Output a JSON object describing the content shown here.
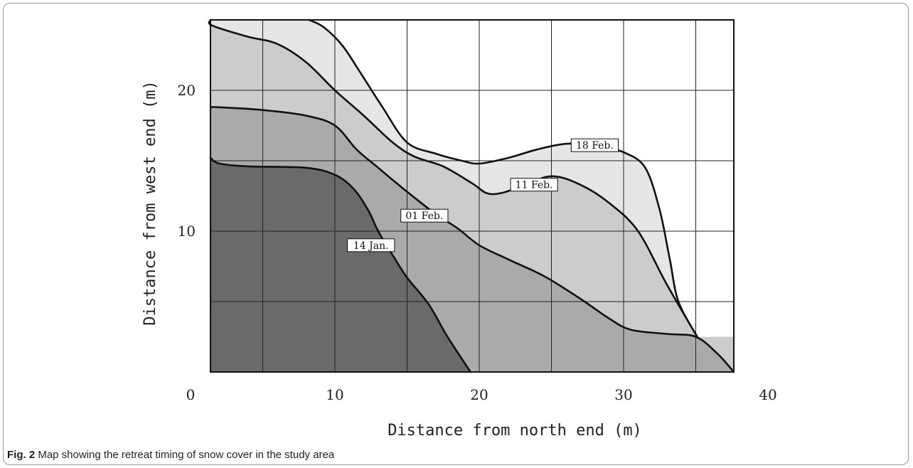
{
  "chart_data": {
    "type": "area",
    "xlabel": "Distance from north end (m)",
    "ylabel": "Distance from west end (m)",
    "xlim": [
      0,
      40
    ],
    "ylim": [
      0,
      25
    ],
    "x_ticks": [
      "0",
      "10",
      "20",
      "30",
      "40"
    ],
    "y_ticks": [
      "10",
      "20"
    ],
    "grid": true,
    "series": [
      {
        "name": "18 Feb.",
        "color": "#e6e6e6",
        "points": [
          [
            8.2,
            25
          ],
          [
            9.2,
            24.5
          ],
          [
            10.5,
            23.2
          ],
          [
            11.8,
            21.2
          ],
          [
            13.3,
            18.8
          ],
          [
            15,
            16.3
          ],
          [
            17,
            15.5
          ],
          [
            18.8,
            15.0
          ],
          [
            20,
            14.8
          ],
          [
            22,
            15.2
          ],
          [
            24,
            15.8
          ],
          [
            26,
            16.2
          ],
          [
            28,
            16.1
          ],
          [
            30,
            15.6
          ],
          [
            31.5,
            14.5
          ],
          [
            32.5,
            11.5
          ],
          [
            33.2,
            8.0
          ],
          [
            33.8,
            5.0
          ],
          [
            35.1,
            2.5
          ]
        ]
      },
      {
        "name": "11 Feb.",
        "color": "#cccccc",
        "points": [
          [
            0,
            25
          ],
          [
            1.5,
            24.6
          ],
          [
            4,
            23.8
          ],
          [
            6,
            23.3
          ],
          [
            8,
            22.0
          ],
          [
            10,
            20.0
          ],
          [
            12,
            18.2
          ],
          [
            14,
            16.3
          ],
          [
            15.5,
            15.3
          ],
          [
            17.5,
            14.6
          ],
          [
            19.5,
            13.4
          ],
          [
            20.5,
            12.7
          ],
          [
            21.5,
            12.7
          ],
          [
            23,
            13.2
          ],
          [
            25,
            13.9
          ],
          [
            27,
            13.3
          ],
          [
            29,
            12.0
          ],
          [
            31,
            10.0
          ],
          [
            33,
            6.2
          ],
          [
            35.1,
            2.5
          ]
        ]
      },
      {
        "name": "01 Feb.",
        "color": "#aaaaaa",
        "points": [
          [
            0,
            18.8
          ],
          [
            2,
            18.8
          ],
          [
            5,
            18.6
          ],
          [
            8,
            18.2
          ],
          [
            10,
            17.5
          ],
          [
            11.5,
            15.8
          ],
          [
            13,
            14.5
          ],
          [
            15,
            12.8
          ],
          [
            17,
            11.2
          ],
          [
            18.5,
            10.2
          ],
          [
            20,
            9.0
          ],
          [
            22,
            8.0
          ],
          [
            24.5,
            6.8
          ],
          [
            27,
            5.2
          ],
          [
            29,
            3.8
          ],
          [
            30.5,
            3.0
          ],
          [
            33,
            2.7
          ],
          [
            35,
            2.5
          ],
          [
            36.5,
            1.3
          ],
          [
            37.7,
            0
          ]
        ]
      },
      {
        "name": "14 Jan.",
        "color": "#6a6a6a",
        "points": [
          [
            0,
            15.2
          ],
          [
            2,
            14.8
          ],
          [
            4,
            14.6
          ],
          [
            8,
            14.5
          ],
          [
            10,
            14.0
          ],
          [
            11.3,
            13.0
          ],
          [
            12.3,
            11.5
          ],
          [
            13,
            10.0
          ],
          [
            14,
            8.3
          ],
          [
            15,
            6.7
          ],
          [
            16.5,
            4.8
          ],
          [
            17.8,
            2.5
          ],
          [
            19.4,
            0
          ]
        ]
      }
    ],
    "labels": [
      {
        "text": "18 Feb.",
        "x": 28.0,
        "y": 16.1
      },
      {
        "text": "11 Feb.",
        "x": 23.8,
        "y": 13.3
      },
      {
        "text": "01 Feb.",
        "x": 16.2,
        "y": 11.1
      },
      {
        "text": "14 Jan.",
        "x": 12.5,
        "y": 9.0
      }
    ]
  },
  "caption": {
    "prefix": "Fig. 2",
    "text": " Map showing the retreat timing of snow cover in the study area"
  }
}
